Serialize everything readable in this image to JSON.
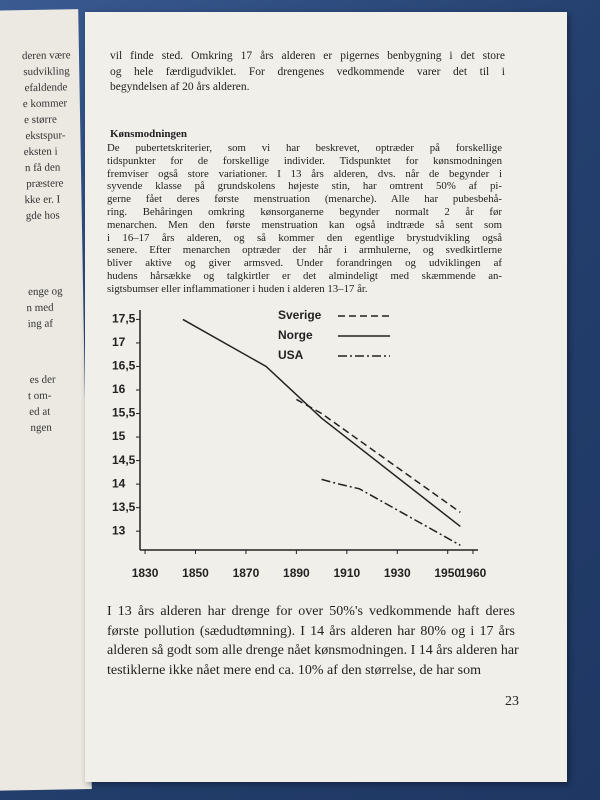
{
  "left_page": {
    "fragments": [
      "deren være",
      "sudvikling",
      "efaldende",
      "e kommer",
      "e større",
      "ekstspur-",
      "eksten i",
      "n få den",
      "præstere",
      "kke er. I",
      "gde hos",
      "enge og",
      "n med",
      "ing af",
      "es der",
      "t om-",
      "ed at",
      "ngen"
    ]
  },
  "intro": {
    "lines": [
      "vil finde sted. Omkring 17 års alderen er pigernes benbygning i det store",
      "og hele færdigudviklet. For drengenes vedkommende varer det til i",
      "begyndelsen af 20 års alderen."
    ]
  },
  "section": {
    "heading": "Kønsmodningen",
    "lines": [
      "De pubertetskriterier, som vi har beskrevet, optræder på forskellige",
      "tidspunkter for de forskellige individer. Tidspunktet for kønsmodningen",
      "fremviser også store variationer. I 13 års alderen, dvs. når de begynder i",
      "syvende klasse på grundskolens højeste stin, har omtrent 50% af pi-",
      "gerne fået deres første menstruation (menarche). Alle har pubesbehå-",
      "ring. Behåringen omkring kønsorganerne begynder normalt 2 år før",
      "menarchen. Men den første menstruation kan også indtræde så sent som",
      "i 16–17 års alderen, og så kommer den egentlige brystudvikling også",
      "senere. Efter menarchen optræder der hår i armhulerne, og svedkirtlerne",
      "bliver aktive og giver armsved. Under forandringen og udviklingen af",
      "hudens hårsække og talgkirtler er det almindeligt med skæmmende an-",
      "sigtsbumser eller inflammationer i huden i alderen 13–17 år."
    ]
  },
  "chart_data": {
    "type": "line",
    "xlim": [
      1828,
      1962
    ],
    "xticks": [
      1830,
      1850,
      1870,
      1890,
      1910,
      1930,
      1950,
      1960
    ],
    "ylim": [
      12.6,
      17.7
    ],
    "yticks": [
      13,
      {
        "value": 13.5,
        "label": "13,5"
      },
      14,
      {
        "value": 14.5,
        "label": "14,5"
      },
      15,
      {
        "value": 15.5,
        "label": "15,5"
      },
      16,
      {
        "value": 16.5,
        "label": "16,5"
      },
      17,
      {
        "value": 17.5,
        "label": "17,5"
      }
    ],
    "series": [
      {
        "name": "Sverige",
        "color": "#222222",
        "dash": "dashed",
        "x": [
          1890,
          1900,
          1955
        ],
        "values": [
          15.8,
          15.5,
          13.4
        ]
      },
      {
        "name": "Norge",
        "color": "#222222",
        "dash": "solid",
        "x": [
          1845,
          1878,
          1900,
          1955
        ],
        "values": [
          17.5,
          16.5,
          15.4,
          13.1
        ]
      },
      {
        "name": "USA",
        "color": "#222222",
        "dash": "dashdot",
        "x": [
          1900,
          1907,
          1915,
          1955
        ],
        "values": [
          14.1,
          14.0,
          13.9,
          12.7
        ]
      }
    ]
  },
  "outro": {
    "lines": [
      "I 13 års alderen har drenge for over 50%'s vedkommende haft deres",
      "første pollution (sædudtømning). I 14 års alderen har 80% og i 17 års",
      "alderen så godt som alle drenge nået kønsmodningen. I 14 års alderen har",
      "testiklerne ikke nået mere end ca. 10% af den størrelse, de har som"
    ]
  },
  "page_number": "23"
}
